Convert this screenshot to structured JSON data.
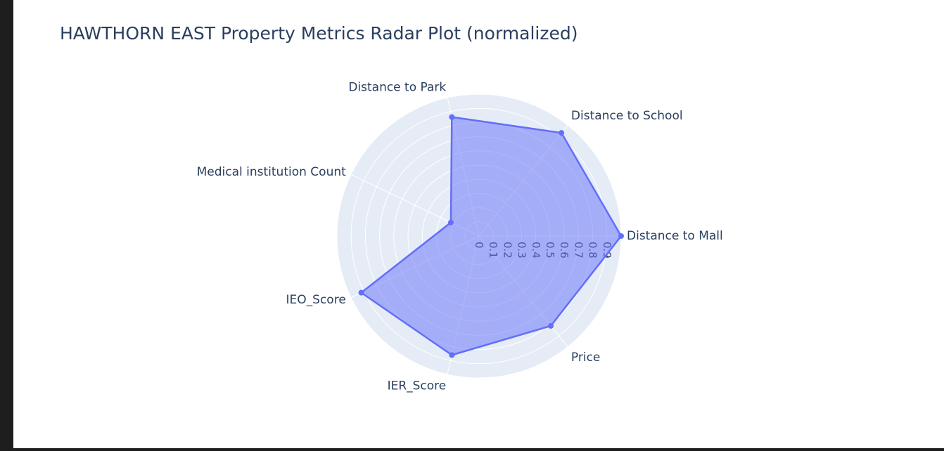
{
  "chart_data": {
    "type": "radar",
    "title": "HAWTHORN EAST Property Metrics Radar Plot (normalized)",
    "axes": [
      "Distance to Mall",
      "Distance to School",
      "Distance to Park",
      "Medical institution Count",
      "IEO_Score",
      "IER_Score",
      "Price"
    ],
    "series": [
      {
        "values": [
          1.0,
          0.93,
          0.86,
          0.22,
          0.92,
          0.86,
          0.81
        ]
      }
    ],
    "radial_range": [
      0,
      1
    ],
    "radial_ticks": [
      "0",
      "0.1",
      "0.2",
      "0.3",
      "0.4",
      "0.5",
      "0.6",
      "0.7",
      "0.8",
      "0.9"
    ],
    "grid": true,
    "colors": {
      "line": "#636efa",
      "fill": "rgba(99,110,250,0.5)",
      "polar_bg": "#e5ecf6",
      "grid": "#ffffff",
      "text": "#2a3f5f"
    }
  }
}
